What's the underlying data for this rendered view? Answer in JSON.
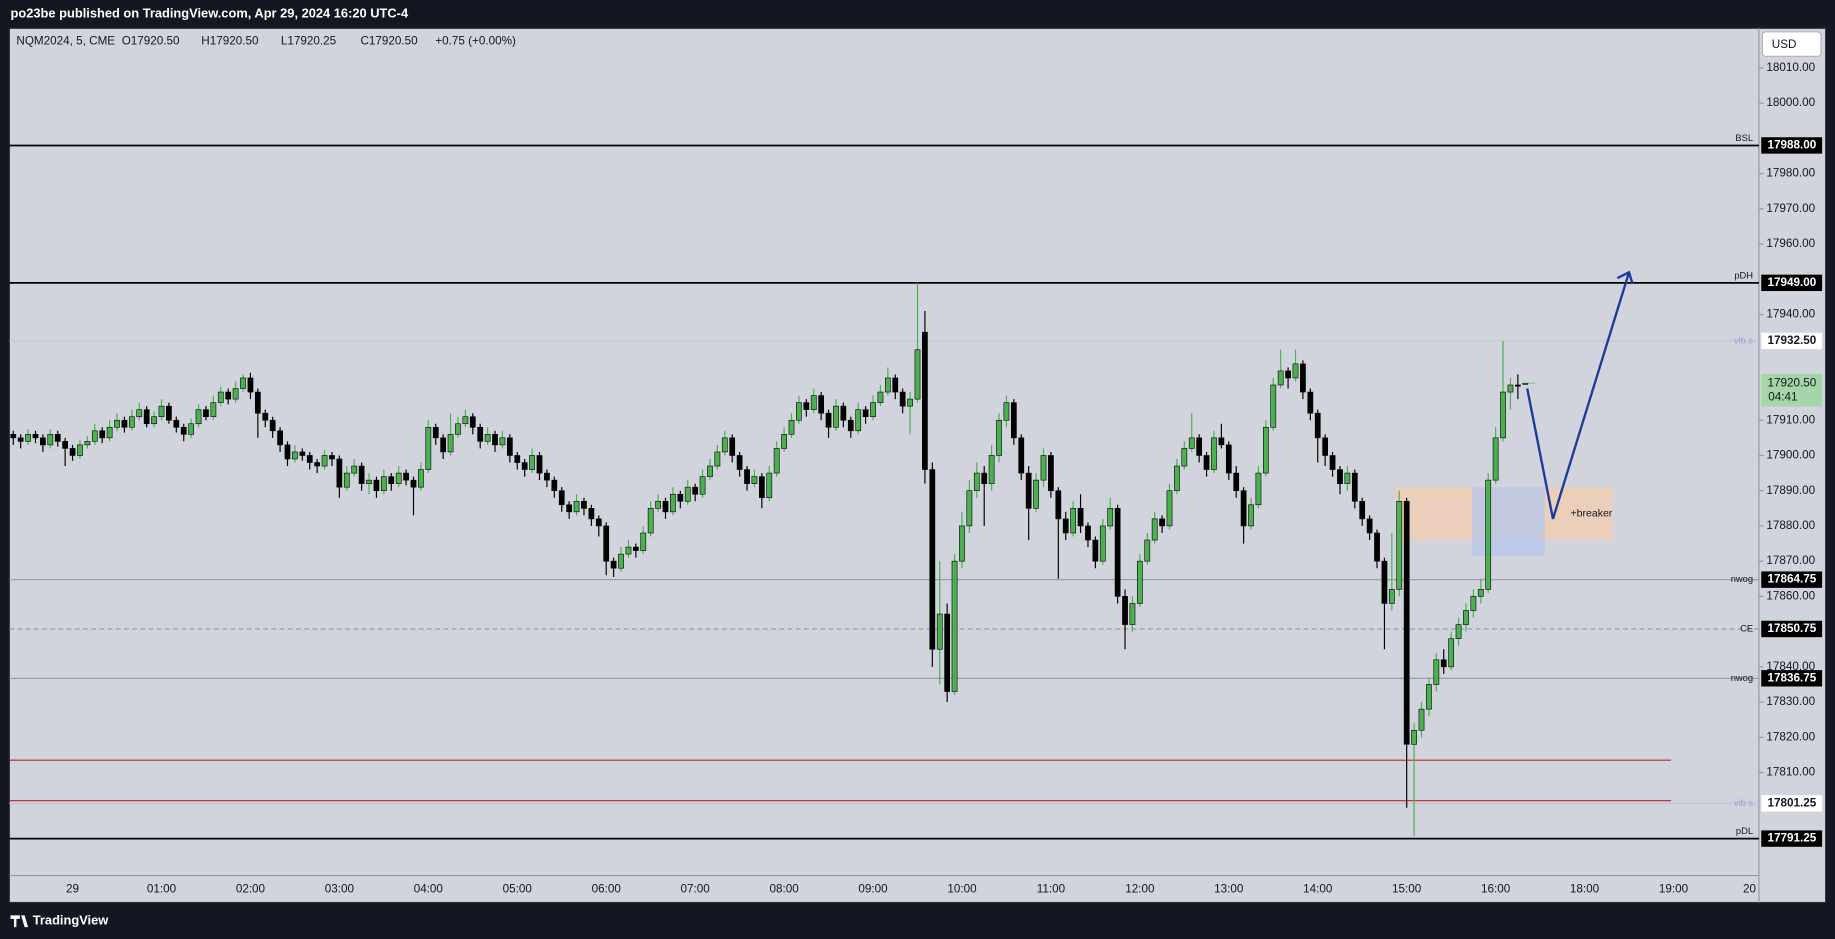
{
  "header": {
    "publisher": "po23be published on TradingView.com, Apr 29, 2024 16:20 UTC-4",
    "footer": "TradingView"
  },
  "chart_data": {
    "type": "candlestick",
    "symbol": "NQM2024, 5, CME",
    "ohlc_labels": [
      "O17920.50",
      "H17920.50",
      "L17920.25",
      "C17920.50",
      "+0.75 (+0.00%)"
    ],
    "currency": "USD",
    "up_color": "#4caf50",
    "down_color": "#000000",
    "ylim": [
      17780.75,
      18021.25
    ],
    "yticks": [
      {
        "value": 18010,
        "label": "18010.00"
      },
      {
        "value": 18000,
        "label": "18000.00"
      },
      {
        "value": 17980,
        "label": "17980.00"
      },
      {
        "value": 17970,
        "label": "17970.00"
      },
      {
        "value": 17960,
        "label": "17960.00"
      },
      {
        "value": 17940,
        "label": "17940.00"
      },
      {
        "value": 17910,
        "label": "17910.00"
      },
      {
        "value": 17900,
        "label": "17900.00"
      },
      {
        "value": 17890,
        "label": "17890.00"
      },
      {
        "value": 17880,
        "label": "17880.00"
      },
      {
        "value": 17870,
        "label": "17870.00"
      },
      {
        "value": 17860,
        "label": "17860.00"
      },
      {
        "value": 17840,
        "label": "17840.00"
      },
      {
        "value": 17830,
        "label": "17830.00"
      },
      {
        "value": 17820,
        "label": "17820.00"
      },
      {
        "value": 17810,
        "label": "17810.00"
      }
    ],
    "time_labels": [
      "29",
      "01:00",
      "02:00",
      "03:00",
      "04:00",
      "05:00",
      "06:00",
      "07:00",
      "08:00",
      "09:00",
      "10:00",
      "11:00",
      "12:00",
      "13:00",
      "14:00",
      "15:00",
      "16:00",
      "18:00",
      "19:00",
      "20"
    ],
    "last_price": {
      "value": 17920.5,
      "label": "17920.50",
      "countdown": "04:41",
      "color": "#a5d6a7"
    },
    "levels": [
      {
        "name": "BSL",
        "value": 17988,
        "label": "17988.00",
        "color": "#000000",
        "label_bg": "#000000"
      },
      {
        "name": "pDH",
        "value": 17949,
        "label": "17949.00",
        "color": "#000000",
        "label_bg": "#000000"
      },
      {
        "name": "vib s",
        "value": 17932.5,
        "label": "17932.50",
        "color": "#c3c6d0",
        "label_bg": "#ffffff"
      },
      {
        "name": "nwog",
        "value": 17864.75,
        "label": "17864.75",
        "color": "#9598a1",
        "label_bg": "#000000"
      },
      {
        "name": "CE",
        "value": 17850.75,
        "label": "17850.75",
        "color": "#9598a1",
        "label_bg": "#000000",
        "style": "dashed"
      },
      {
        "name": "nwog",
        "value": 17836.75,
        "label": "17836.75",
        "color": "#9598a1",
        "label_bg": "#000000"
      },
      {
        "value": 17813.5,
        "color": "#b22833"
      },
      {
        "value": 17802,
        "color": "#b22833"
      },
      {
        "name": "vib s",
        "value": 17801.25,
        "label": "17801.25",
        "color": "#c3c6d0",
        "label_bg": "#ffffff"
      },
      {
        "name": "pDL",
        "value": 17791.25,
        "label": "17791.25",
        "color": "#000000",
        "label_bg": "#000000"
      }
    ],
    "zones": [
      {
        "label": "+breaker",
        "top": 17891,
        "bottom": 17876,
        "color": "#f3cdb0"
      },
      {
        "top": 17891,
        "bottom": 17871.5,
        "color": "#b5c6ee"
      }
    ],
    "projection": {
      "values": [
        17919,
        17882,
        17952
      ],
      "color": "#1a3a9c"
    },
    "candles": [
      [
        17906,
        17907,
        17903,
        17905
      ],
      [
        17905,
        17906,
        17902,
        17904
      ],
      [
        17904,
        17907.5,
        17903,
        17906
      ],
      [
        17906,
        17907,
        17903.5,
        17905
      ],
      [
        17905,
        17906,
        17901,
        17903
      ],
      [
        17903,
        17907.5,
        17902,
        17906
      ],
      [
        17906,
        17907,
        17902.5,
        17904
      ],
      [
        17904,
        17905,
        17897,
        17902
      ],
      [
        17902,
        17903,
        17898.5,
        17900
      ],
      [
        17900,
        17904.5,
        17899,
        17903
      ],
      [
        17903,
        17905.5,
        17902,
        17904
      ],
      [
        17904,
        17909,
        17903,
        17907
      ],
      [
        17907,
        17908,
        17903.5,
        17905
      ],
      [
        17905,
        17910,
        17904,
        17908
      ],
      [
        17908,
        17912,
        17907,
        17910
      ],
      [
        17910,
        17911,
        17906.5,
        17908
      ],
      [
        17908,
        17913,
        17907,
        17911
      ],
      [
        17911,
        17915,
        17910,
        17913
      ],
      [
        17913,
        17914,
        17908,
        17909
      ],
      [
        17909,
        17912.5,
        17908,
        17911
      ],
      [
        17911,
        17916,
        17910,
        17914
      ],
      [
        17914,
        17915,
        17909,
        17910
      ],
      [
        17910,
        17911,
        17906.5,
        17908
      ],
      [
        17908,
        17909,
        17904,
        17906
      ],
      [
        17906,
        17910.5,
        17905,
        17909
      ],
      [
        17909,
        17914.5,
        17908,
        17913
      ],
      [
        17913,
        17914,
        17910,
        17911
      ],
      [
        17911,
        17917,
        17910,
        17915
      ],
      [
        17915,
        17919.5,
        17914,
        17918
      ],
      [
        17918,
        17919,
        17914.5,
        17916
      ],
      [
        17916,
        17921,
        17915,
        17919
      ],
      [
        17919,
        17923,
        17918,
        17922
      ],
      [
        17922,
        17923.5,
        17916,
        17918
      ],
      [
        17918,
        17919,
        17905,
        17912
      ],
      [
        17912,
        17913,
        17908,
        17910
      ],
      [
        17910,
        17911,
        17905,
        17907
      ],
      [
        17907,
        17908,
        17901,
        17903
      ],
      [
        17903,
        17904,
        17897,
        17899
      ],
      [
        17899,
        17903,
        17898,
        17901
      ],
      [
        17901,
        17902,
        17898.5,
        17900
      ],
      [
        17900,
        17901,
        17896,
        17898
      ],
      [
        17898,
        17899,
        17895,
        17897
      ],
      [
        17897,
        17901.5,
        17896,
        17900
      ],
      [
        17900,
        17901,
        17897,
        17899
      ],
      [
        17899,
        17900,
        17888,
        17891
      ],
      [
        17891,
        17897,
        17890,
        17895
      ],
      [
        17895,
        17899,
        17894,
        17897
      ],
      [
        17897,
        17898,
        17890,
        17892
      ],
      [
        17892,
        17895,
        17889,
        17893
      ],
      [
        17893,
        17894,
        17888,
        17890
      ],
      [
        17890,
        17896,
        17889,
        17894
      ],
      [
        17894,
        17895,
        17890,
        17892
      ],
      [
        17892,
        17897,
        17891,
        17895
      ],
      [
        17895,
        17896,
        17891.5,
        17893
      ],
      [
        17893,
        17894,
        17883,
        17891
      ],
      [
        17891,
        17898,
        17890,
        17896
      ],
      [
        17896,
        17910,
        17895,
        17908
      ],
      [
        17908,
        17909,
        17903,
        17905
      ],
      [
        17905,
        17906,
        17899,
        17901
      ],
      [
        17901,
        17912,
        17900,
        17906
      ],
      [
        17906,
        17911,
        17905,
        17909
      ],
      [
        17909,
        17913,
        17908,
        17911
      ],
      [
        17911,
        17912,
        17906,
        17908
      ],
      [
        17908,
        17909,
        17902,
        17904
      ],
      [
        17904,
        17908,
        17903,
        17906
      ],
      [
        17906,
        17907,
        17901,
        17903
      ],
      [
        17903,
        17907,
        17902,
        17905
      ],
      [
        17905,
        17906,
        17898,
        17900
      ],
      [
        17900,
        17901,
        17896,
        17898
      ],
      [
        17898,
        17899,
        17894,
        17896
      ],
      [
        17896,
        17902,
        17895,
        17900
      ],
      [
        17900,
        17901,
        17893,
        17895
      ],
      [
        17895,
        17896,
        17891,
        17893
      ],
      [
        17893,
        17894,
        17888,
        17890
      ],
      [
        17890,
        17891,
        17884,
        17886
      ],
      [
        17886,
        17887,
        17882,
        17884
      ],
      [
        17884,
        17889,
        17883,
        17887
      ],
      [
        17887,
        17888,
        17883,
        17885
      ],
      [
        17885,
        17886,
        17880,
        17882
      ],
      [
        17882,
        17883,
        17877,
        17880
      ],
      [
        17880,
        17881,
        17866,
        17870
      ],
      [
        17870,
        17871,
        17865.5,
        17868
      ],
      [
        17868,
        17874,
        17867,
        17872
      ],
      [
        17872,
        17876,
        17871,
        17874
      ],
      [
        17874,
        17875,
        17871,
        17873
      ],
      [
        17873,
        17880,
        17872,
        17878
      ],
      [
        17878,
        17887,
        17877,
        17885
      ],
      [
        17885,
        17889,
        17884,
        17887
      ],
      [
        17887,
        17888,
        17882,
        17884
      ],
      [
        17884,
        17891,
        17883,
        17889
      ],
      [
        17889,
        17890,
        17885,
        17887
      ],
      [
        17887,
        17893,
        17886,
        17891
      ],
      [
        17891,
        17892,
        17887,
        17889
      ],
      [
        17889,
        17896,
        17888,
        17894
      ],
      [
        17894,
        17899,
        17893,
        17897
      ],
      [
        17897,
        17903,
        17896,
        17901
      ],
      [
        17901,
        17907,
        17900,
        17905
      ],
      [
        17905,
        17906,
        17898,
        17900
      ],
      [
        17900,
        17901,
        17894,
        17896
      ],
      [
        17896,
        17897,
        17890,
        17892
      ],
      [
        17892,
        17896,
        17891,
        17894
      ],
      [
        17894,
        17895,
        17885,
        17888
      ],
      [
        17888,
        17897,
        17887,
        17895
      ],
      [
        17895,
        17904,
        17894,
        17902
      ],
      [
        17902,
        17908,
        17901,
        17906
      ],
      [
        17906,
        17912,
        17905,
        17910
      ],
      [
        17910,
        17917,
        17909,
        17915
      ],
      [
        17915,
        17916,
        17911,
        17913
      ],
      [
        17913,
        17919,
        17912,
        17917
      ],
      [
        17917,
        17918,
        17910,
        17912
      ],
      [
        17912,
        17913,
        17905,
        17908
      ],
      [
        17908,
        17916,
        17907,
        17914
      ],
      [
        17914,
        17915,
        17908,
        17910
      ],
      [
        17910,
        17911,
        17905,
        17907
      ],
      [
        17907,
        17915,
        17906,
        17913
      ],
      [
        17913,
        17914,
        17909,
        17911
      ],
      [
        17911,
        17917,
        17910,
        17915
      ],
      [
        17915,
        17920,
        17914,
        17918
      ],
      [
        17918,
        17925,
        17917,
        17922
      ],
      [
        17922,
        17923,
        17916,
        17918
      ],
      [
        17918,
        17919,
        17912,
        17914
      ],
      [
        17914,
        17918,
        17906,
        17916
      ],
      [
        17916,
        17949,
        17915,
        17930
      ],
      [
        17935,
        17941,
        17892,
        17896
      ],
      [
        17896,
        17898,
        17840,
        17845
      ],
      [
        17845,
        17870,
        17835,
        17855
      ],
      [
        17855,
        17858,
        17830,
        17833
      ],
      [
        17833,
        17872,
        17832,
        17870
      ],
      [
        17870,
        17884,
        17868,
        17880
      ],
      [
        17880,
        17893,
        17878,
        17890
      ],
      [
        17890,
        17898,
        17888,
        17895
      ],
      [
        17895,
        17897,
        17880,
        17892
      ],
      [
        17892,
        17903,
        17890,
        17900
      ],
      [
        17900,
        17912,
        17898,
        17910
      ],
      [
        17910,
        17917,
        17908,
        17915
      ],
      [
        17915,
        17916,
        17903,
        17905
      ],
      [
        17905,
        17906,
        17893,
        17895
      ],
      [
        17895,
        17897,
        17876,
        17885
      ],
      [
        17885,
        17895,
        17884,
        17893
      ],
      [
        17893,
        17902,
        17891,
        17900
      ],
      [
        17900,
        17901,
        17888,
        17890
      ],
      [
        17890,
        17891,
        17865,
        17882
      ],
      [
        17882,
        17884,
        17876,
        17878
      ],
      [
        17878,
        17887,
        17877,
        17885
      ],
      [
        17885,
        17889,
        17878,
        17880
      ],
      [
        17880,
        17881,
        17874,
        17876
      ],
      [
        17876,
        17877,
        17868,
        17870
      ],
      [
        17870,
        17882,
        17869,
        17880
      ],
      [
        17880,
        17888,
        17879,
        17885
      ],
      [
        17885,
        17886,
        17858,
        17860
      ],
      [
        17860,
        17862,
        17845,
        17852
      ],
      [
        17852,
        17860,
        17850,
        17858
      ],
      [
        17858,
        17872,
        17857,
        17870
      ],
      [
        17870,
        17878,
        17869,
        17876
      ],
      [
        17876,
        17884,
        17875,
        17882
      ],
      [
        17882,
        17883,
        17878,
        17880
      ],
      [
        17880,
        17892,
        17879,
        17890
      ],
      [
        17890,
        17899,
        17889,
        17897
      ],
      [
        17897,
        17904,
        17896,
        17902
      ],
      [
        17902,
        17912,
        17901,
        17905
      ],
      [
        17905,
        17906,
        17898,
        17900
      ],
      [
        17900,
        17901,
        17894,
        17896
      ],
      [
        17896,
        17907,
        17895,
        17905
      ],
      [
        17905,
        17909,
        17902,
        17903
      ],
      [
        17903,
        17904,
        17893,
        17895
      ],
      [
        17895,
        17897,
        17888,
        17890
      ],
      [
        17890,
        17891,
        17875,
        17880
      ],
      [
        17880,
        17888,
        17879,
        17886
      ],
      [
        17886,
        17897,
        17885,
        17895
      ],
      [
        17895,
        17910,
        17894,
        17908
      ],
      [
        17908,
        17922,
        17907,
        17920
      ],
      [
        17920,
        17930,
        17919,
        17924
      ],
      [
        17924,
        17925,
        17919,
        17922
      ],
      [
        17922,
        17930,
        17921,
        17926
      ],
      [
        17926,
        17927,
        17916,
        17918
      ],
      [
        17918,
        17919,
        17910,
        17912
      ],
      [
        17912,
        17913,
        17898,
        17905
      ],
      [
        17905,
        17906,
        17897,
        17900
      ],
      [
        17900,
        17901,
        17894,
        17896
      ],
      [
        17896,
        17897,
        17889,
        17892
      ],
      [
        17892,
        17897,
        17890,
        17895
      ],
      [
        17895,
        17896,
        17885,
        17887
      ],
      [
        17887,
        17888,
        17880,
        17882
      ],
      [
        17882,
        17883,
        17876,
        17878
      ],
      [
        17878,
        17879,
        17868,
        17870
      ],
      [
        17870,
        17871,
        17845,
        17858
      ],
      [
        17858,
        17878,
        17856,
        17862
      ],
      [
        17862,
        17890,
        17860,
        17887
      ],
      [
        17887,
        17888,
        17800,
        17818
      ],
      [
        17818,
        17824,
        17792,
        17822
      ],
      [
        17822,
        17830,
        17820,
        17828
      ],
      [
        17828,
        17837,
        17826,
        17835
      ],
      [
        17835,
        17844,
        17833,
        17842
      ],
      [
        17842,
        17845,
        17838,
        17840
      ],
      [
        17840,
        17850,
        17839,
        17848
      ],
      [
        17848,
        17854,
        17846,
        17852
      ],
      [
        17852,
        17858,
        17850,
        17856
      ],
      [
        17856,
        17862,
        17854,
        17860
      ],
      [
        17860,
        17865,
        17858,
        17862
      ],
      [
        17862,
        17895,
        17861,
        17893
      ],
      [
        17893,
        17908,
        17892,
        17905
      ],
      [
        17905,
        17932.5,
        17904,
        17918
      ],
      [
        17918,
        17922,
        17913,
        17920
      ],
      [
        17920,
        17923,
        17916,
        17919.75
      ],
      [
        17920.5,
        17920.5,
        17920.25,
        17920.5
      ]
    ]
  }
}
